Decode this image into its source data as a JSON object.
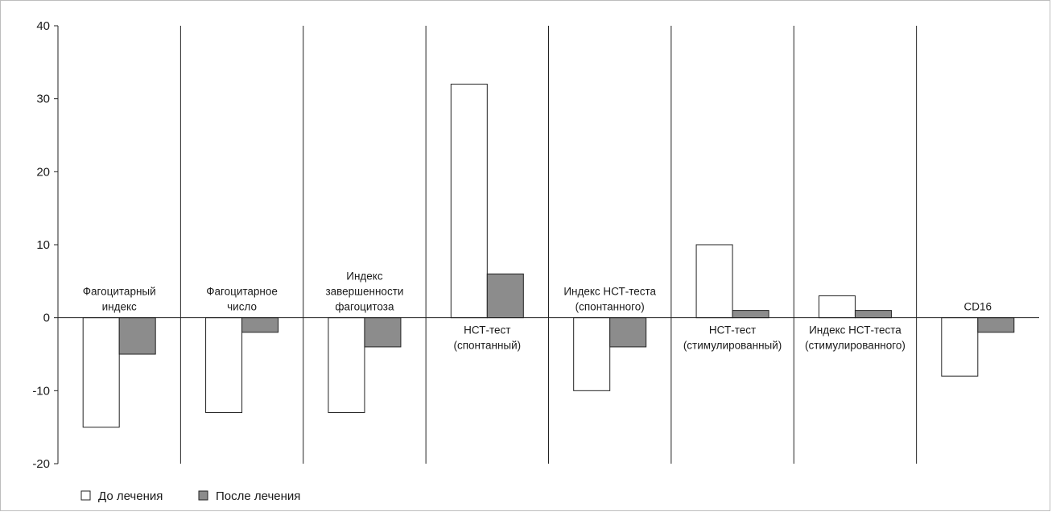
{
  "chart_data": {
    "type": "bar",
    "title": "",
    "xlabel": "",
    "ylabel": "",
    "ylim": [
      -20,
      40
    ],
    "yticks": [
      40,
      30,
      20,
      10,
      0,
      -10,
      -20
    ],
    "grid": false,
    "legend_position": "bottom-left",
    "categories": [
      "Фагоцитарный индекс",
      "Фагоцитарное число",
      "Индекс завершенности фагоцитоза",
      "НСТ-тест (спонтанный)",
      "Индекс НСТ-теста (спонтанного)",
      "НСТ-тест (стимулированный)",
      "Индекс НСТ-теста (стимулированного)",
      "CD16"
    ],
    "category_label_lines": [
      [
        "Фагоцитарный",
        "индекс"
      ],
      [
        "Фагоцитарное",
        "число"
      ],
      [
        "Индекс",
        "завершенности",
        "фагоцитоза"
      ],
      [
        "НСТ-тест",
        "(спонтанный)"
      ],
      [
        "Индекс НСТ-теста",
        "(спонтанного)"
      ],
      [
        "НСТ-тест",
        "(стимулированный)"
      ],
      [
        "Индекс НСТ-теста",
        "(стимулированного)"
      ],
      [
        "CD16"
      ]
    ],
    "series": [
      {
        "name": "До лечения",
        "color": "#ffffff",
        "values": [
          -15,
          -13,
          -13,
          32,
          -10,
          10,
          3,
          -8
        ]
      },
      {
        "name": "После лечения",
        "color": "#8c8c8c",
        "values": [
          -5,
          -2,
          -4,
          6,
          -4,
          1,
          1,
          -2
        ]
      }
    ]
  }
}
